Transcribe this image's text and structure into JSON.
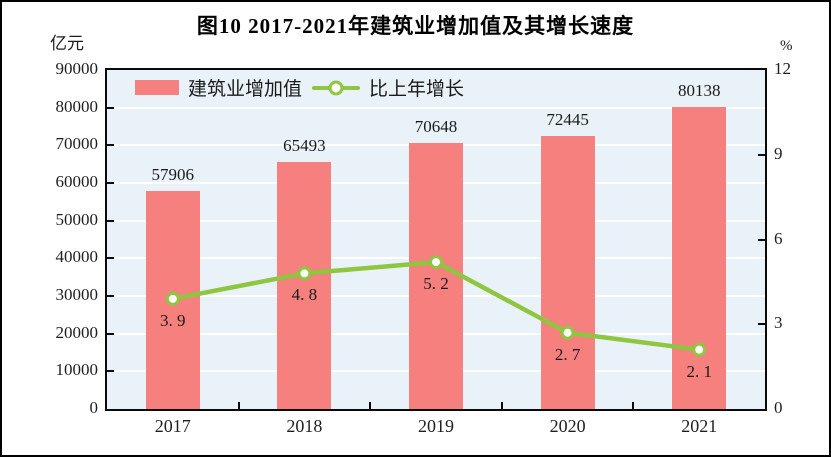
{
  "figure": {
    "title": "图10  2017-2021年建筑业增加值及其增长速度",
    "left_axis_unit": "亿元",
    "right_axis_unit": "%"
  },
  "legend": {
    "items": [
      {
        "label": "建筑业增加值",
        "symbol": "bar-swatch"
      },
      {
        "label": "比上年增长",
        "symbol": "line-with-marker"
      }
    ]
  },
  "chart_data": {
    "type": "bar",
    "subtype": "bar+line dual-axis",
    "categories": [
      "2017",
      "2018",
      "2019",
      "2020",
      "2021"
    ],
    "series": [
      {
        "name": "建筑业增加值",
        "type": "bar",
        "axis": "left",
        "values": [
          57906,
          65493,
          70648,
          72445,
          80138
        ],
        "labels": [
          "57906",
          "65493",
          "70648",
          "72445",
          "80138"
        ],
        "color": "#f5807e"
      },
      {
        "name": "比上年增长",
        "type": "line",
        "axis": "right",
        "values": [
          3.9,
          4.8,
          5.2,
          2.7,
          2.1
        ],
        "labels": [
          "3. 9",
          "4. 8",
          "5. 2",
          "2. 7",
          "2. 1"
        ],
        "color": "#8ec63f",
        "marker": "circle-white-fill-green-stroke"
      }
    ],
    "left_axis": {
      "unit": "亿元",
      "min": 0,
      "max": 90000,
      "step": 10000,
      "ticks": [
        "0",
        "10000",
        "20000",
        "30000",
        "40000",
        "50000",
        "60000",
        "70000",
        "80000",
        "90000"
      ]
    },
    "right_axis": {
      "unit": "%",
      "min": 0,
      "max": 12,
      "step": 3,
      "ticks": [
        "0",
        "3",
        "6",
        "9",
        "12"
      ]
    },
    "grid": {
      "horizontal": true,
      "vertical": false,
      "grid_color": "#ffffff"
    },
    "plot_background": "#eaf2f9",
    "frame_color": "#0a0a0a",
    "legend_position": "top-left-inside"
  },
  "colors": {
    "bar": "#f5807e",
    "line": "#8ec63f",
    "marker_fill": "#ffffff",
    "plot_bg": "#eaf2f9",
    "grid": "#ffffff",
    "frame": "#0a0a0a",
    "text": "#1a1a1a"
  }
}
